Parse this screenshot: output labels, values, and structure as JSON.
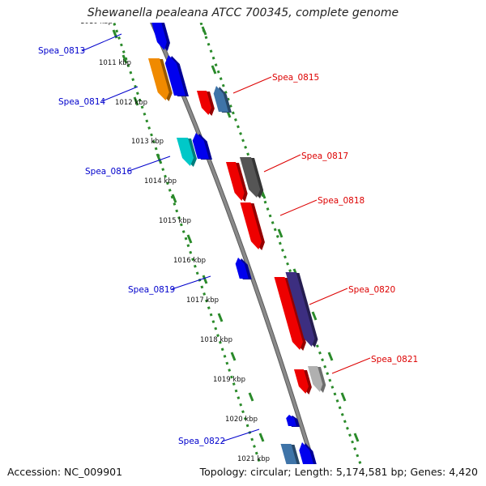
{
  "title": "Shewanella pealeana ATCC 700345, complete genome",
  "accession": "Accession: NC_009901",
  "summary": "Topology: circular; Length: 5,174,581 bp; Genes: 4,420",
  "colors": {
    "label_left": "#0000cc",
    "label_right": "#dd0000",
    "backbone": "#8a8a8a",
    "tick": "#2a8a2a"
  },
  "ticks": [
    {
      "label": "1010 kbp"
    },
    {
      "label": "1011 kbp"
    },
    {
      "label": "1012 kbp"
    },
    {
      "label": "1013 kbp"
    },
    {
      "label": "1014 kbp"
    },
    {
      "label": "1015 kbp"
    },
    {
      "label": "1016 kbp"
    },
    {
      "label": "1017 kbp"
    },
    {
      "label": "1018 kbp"
    },
    {
      "label": "1019 kbp"
    },
    {
      "label": "1020 kbp"
    },
    {
      "label": "1021 kbp"
    }
  ],
  "gene_labels": [
    {
      "name": "Spea_0813",
      "side": "left"
    },
    {
      "name": "Spea_0814",
      "side": "left"
    },
    {
      "name": "Spea_0815",
      "side": "right"
    },
    {
      "name": "Spea_0816",
      "side": "left"
    },
    {
      "name": "Spea_0817",
      "side": "right"
    },
    {
      "name": "Spea_0818",
      "side": "right"
    },
    {
      "name": "Spea_0819",
      "side": "left"
    },
    {
      "name": "Spea_0820",
      "side": "right"
    },
    {
      "name": "Spea_0821",
      "side": "right"
    },
    {
      "name": "Spea_0822",
      "side": "left"
    }
  ],
  "genes": [
    {
      "id": "g0813",
      "color": "#0000ee"
    },
    {
      "id": "g0814a",
      "color": "#f08a00"
    },
    {
      "id": "g0814b",
      "color": "#0000ee"
    },
    {
      "id": "g0815a",
      "color": "#ee0000"
    },
    {
      "id": "g0815b",
      "color": "#3f74a8"
    },
    {
      "id": "g0816a",
      "color": "#00c8c8"
    },
    {
      "id": "g0816b",
      "color": "#0000ee"
    },
    {
      "id": "g0817a",
      "color": "#ee0000"
    },
    {
      "id": "g0817b",
      "color": "#555555"
    },
    {
      "id": "g0818",
      "color": "#ee0000"
    },
    {
      "id": "g0819",
      "color": "#0000ee"
    },
    {
      "id": "g0820a",
      "color": "#ee0000"
    },
    {
      "id": "g0820b",
      "color": "#3c2e80"
    },
    {
      "id": "g0821a",
      "color": "#ee0000"
    },
    {
      "id": "g0821b",
      "color": "#b0b0b0"
    },
    {
      "id": "g0822a",
      "color": "#0000ee"
    },
    {
      "id": "g0822b",
      "color": "#3f74a8"
    },
    {
      "id": "g0822c",
      "color": "#0000ee"
    }
  ]
}
